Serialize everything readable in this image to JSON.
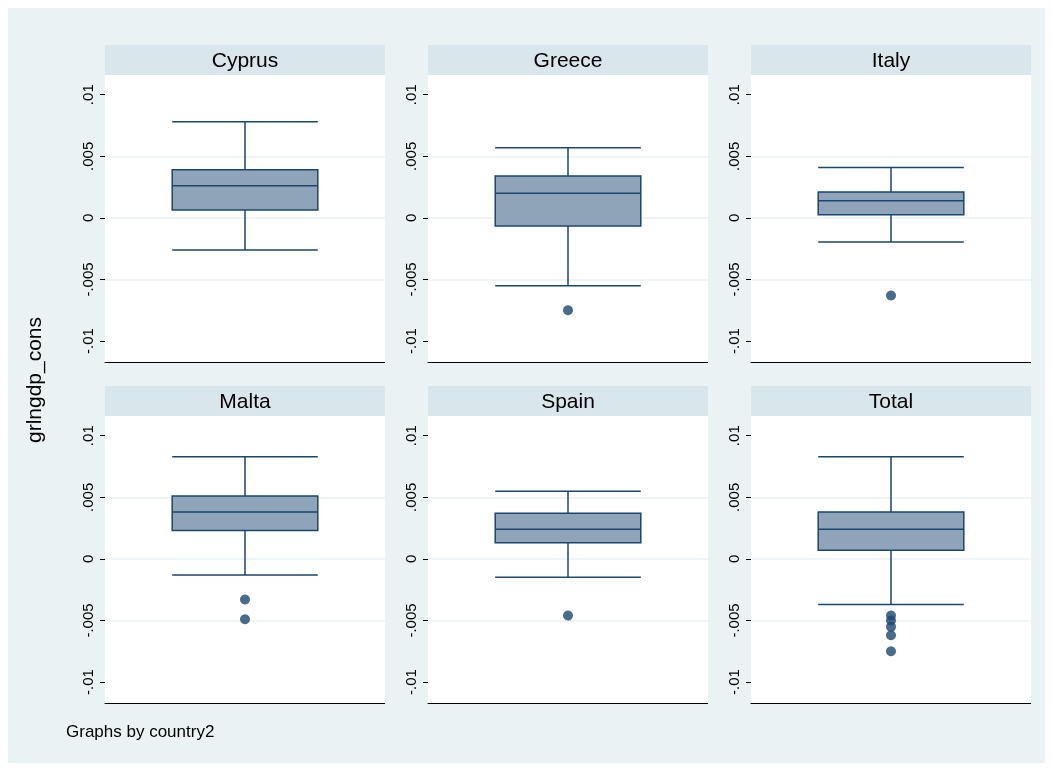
{
  "chart_data": [
    {
      "type": "box",
      "title": "Cyprus",
      "ylabel": "grlngdp_cons",
      "categories": [
        null
      ],
      "color": "#8fa4b9",
      "ylim": [
        -0.0117,
        0.0116
      ],
      "yticks": [
        {
          "value": -0.01,
          "label": "-.01"
        },
        {
          "value": -0.005,
          "label": "-.005"
        },
        {
          "value": 0,
          "label": "0"
        },
        {
          "value": 0.005,
          "label": ".005"
        },
        {
          "value": 0.01,
          "label": ".01"
        }
      ],
      "grid": "y",
      "tick_labels": "y",
      "annotations": [
        "Graphs by country2"
      ],
      "boxes": [
        {
          "low": -0.0026,
          "q1": 0.00065,
          "median": 0.0026,
          "q3": 0.0039,
          "high": 0.0078
        }
      ]
    },
    {
      "type": "box",
      "title": "Greece",
      "categories": [
        null
      ],
      "color": "#8fa4b9",
      "ylim": [
        -0.0117,
        0.0116
      ],
      "yticks": [
        {
          "value": -0.01,
          "label": "-.01"
        },
        {
          "value": -0.005,
          "label": "-.005"
        },
        {
          "value": 0,
          "label": "0"
        },
        {
          "value": 0.005,
          "label": ".005"
        },
        {
          "value": 0.01,
          "label": ".01"
        }
      ],
      "grid": "y",
      "tick_labels": "y",
      "boxes": [
        {
          "low": -0.0055,
          "q1": -0.00065,
          "median": 0.002,
          "q3": 0.0034,
          "high": 0.0057,
          "outliers": [
            -0.0075
          ]
        }
      ]
    },
    {
      "type": "box",
      "title": "Italy",
      "categories": [
        null
      ],
      "color": "#8fa4b9",
      "ylim": [
        -0.0117,
        0.0116
      ],
      "yticks": [
        {
          "value": -0.01,
          "label": "-.01"
        },
        {
          "value": -0.005,
          "label": "-.005"
        },
        {
          "value": 0,
          "label": "0"
        },
        {
          "value": 0.005,
          "label": ".005"
        },
        {
          "value": 0.01,
          "label": ".01"
        }
      ],
      "grid": "y",
      "tick_labels": "y",
      "boxes": [
        {
          "low": -0.00195,
          "q1": 0.00025,
          "median": 0.0014,
          "q3": 0.0021,
          "high": 0.0041,
          "outliers": [
            -0.0063
          ]
        }
      ]
    },
    {
      "type": "box",
      "title": "Malta",
      "categories": [
        null
      ],
      "color": "#8fa4b9",
      "ylim": [
        -0.0117,
        0.0116
      ],
      "yticks": [
        {
          "value": -0.01,
          "label": "-.01"
        },
        {
          "value": -0.005,
          "label": "-.005"
        },
        {
          "value": 0,
          "label": "0"
        },
        {
          "value": 0.005,
          "label": ".005"
        },
        {
          "value": 0.01,
          "label": ".01"
        }
      ],
      "grid": "y",
      "tick_labels": "y",
      "boxes": [
        {
          "low": -0.0013,
          "q1": 0.0023,
          "median": 0.0038,
          "q3": 0.0051,
          "high": 0.0083,
          "outliers": [
            -0.0033,
            -0.0049
          ]
        }
      ]
    },
    {
      "type": "box",
      "title": "Spain",
      "categories": [
        null
      ],
      "color": "#8fa4b9",
      "ylim": [
        -0.0117,
        0.0116
      ],
      "yticks": [
        {
          "value": -0.01,
          "label": "-.01"
        },
        {
          "value": -0.005,
          "label": "-.005"
        },
        {
          "value": 0,
          "label": "0"
        },
        {
          "value": 0.005,
          "label": ".005"
        },
        {
          "value": 0.01,
          "label": ".01"
        }
      ],
      "grid": "y",
      "tick_labels": "y",
      "boxes": [
        {
          "low": -0.0015,
          "q1": 0.0013,
          "median": 0.0024,
          "q3": 0.0037,
          "high": 0.0055,
          "outliers": [
            -0.0046
          ]
        }
      ]
    },
    {
      "type": "box",
      "title": "Total",
      "categories": [
        null
      ],
      "color": "#8fa4b9",
      "ylim": [
        -0.0117,
        0.0116
      ],
      "yticks": [
        {
          "value": -0.01,
          "label": "-.01"
        },
        {
          "value": -0.005,
          "label": "-.005"
        },
        {
          "value": 0,
          "label": "0"
        },
        {
          "value": 0.005,
          "label": ".005"
        },
        {
          "value": 0.01,
          "label": ".01"
        }
      ],
      "grid": "y",
      "tick_labels": "y",
      "boxes": [
        {
          "low": -0.0037,
          "q1": 0.0007,
          "median": 0.0024,
          "q3": 0.0038,
          "high": 0.0083,
          "outliers": [
            -0.0046,
            -0.005,
            -0.0055,
            -0.0062,
            -0.0075
          ]
        }
      ]
    }
  ]
}
